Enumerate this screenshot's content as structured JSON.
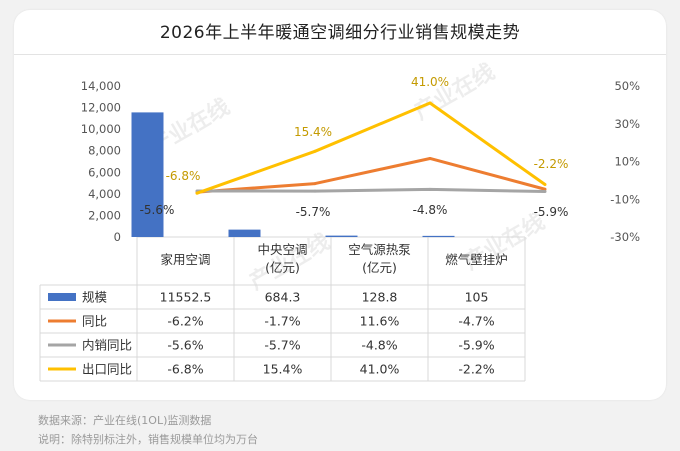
{
  "footer": {
    "source": "数据来源：产业在线(1OL)监测数据",
    "note": "说明：除特别标注外，销售规模单位均为万台"
  },
  "watermark": "产业在线",
  "chart_data": {
    "type": "bar+line",
    "title": "2026年上半年暖通空调细分行业销售规模走势",
    "categories": [
      "家用空调",
      "中央空调\n(亿元)",
      "空气源热泵\n(亿元)",
      "燃气壁挂炉"
    ],
    "y_left": {
      "min": 0,
      "max": 14000,
      "ticks": [
        "0",
        "2,000",
        "4,000",
        "6,000",
        "8,000",
        "10,000",
        "12,000",
        "14,000"
      ]
    },
    "y_right": {
      "min": -30,
      "max": 50,
      "ticks": [
        "-30%",
        "-10%",
        "10%",
        "30%",
        "50%"
      ]
    },
    "series": [
      {
        "name": "规模",
        "type": "bar",
        "axis": "left",
        "color": "#4472c4",
        "values": [
          11552.5,
          684.3,
          128.8,
          105
        ],
        "table": [
          "11552.5",
          "684.3",
          "128.8",
          "105"
        ]
      },
      {
        "name": "同比",
        "type": "line",
        "axis": "right",
        "color": "#ed7d31",
        "values": [
          -6.2,
          -1.7,
          11.6,
          -4.7
        ],
        "table": [
          "-6.2%",
          "-1.7%",
          "11.6%",
          "-4.7%"
        ]
      },
      {
        "name": "内销同比",
        "type": "line",
        "axis": "right",
        "color": "#a5a5a5",
        "values": [
          -5.6,
          -5.7,
          -4.8,
          -5.9
        ],
        "table": [
          "-5.6%",
          "-5.7%",
          "-4.8%",
          "-5.9%"
        ],
        "labels": [
          "-5.6%",
          "-5.7%",
          "-4.8%",
          "-5.9%"
        ]
      },
      {
        "name": "出口同比",
        "type": "line",
        "axis": "right",
        "color": "#ffc000",
        "values": [
          -6.8,
          15.4,
          41.0,
          -2.2
        ],
        "table": [
          "-6.8%",
          "15.4%",
          "41.0%",
          "-2.2%"
        ],
        "labels": [
          "-6.8%",
          "15.4%",
          "41.0%",
          "-2.2%"
        ]
      }
    ]
  }
}
